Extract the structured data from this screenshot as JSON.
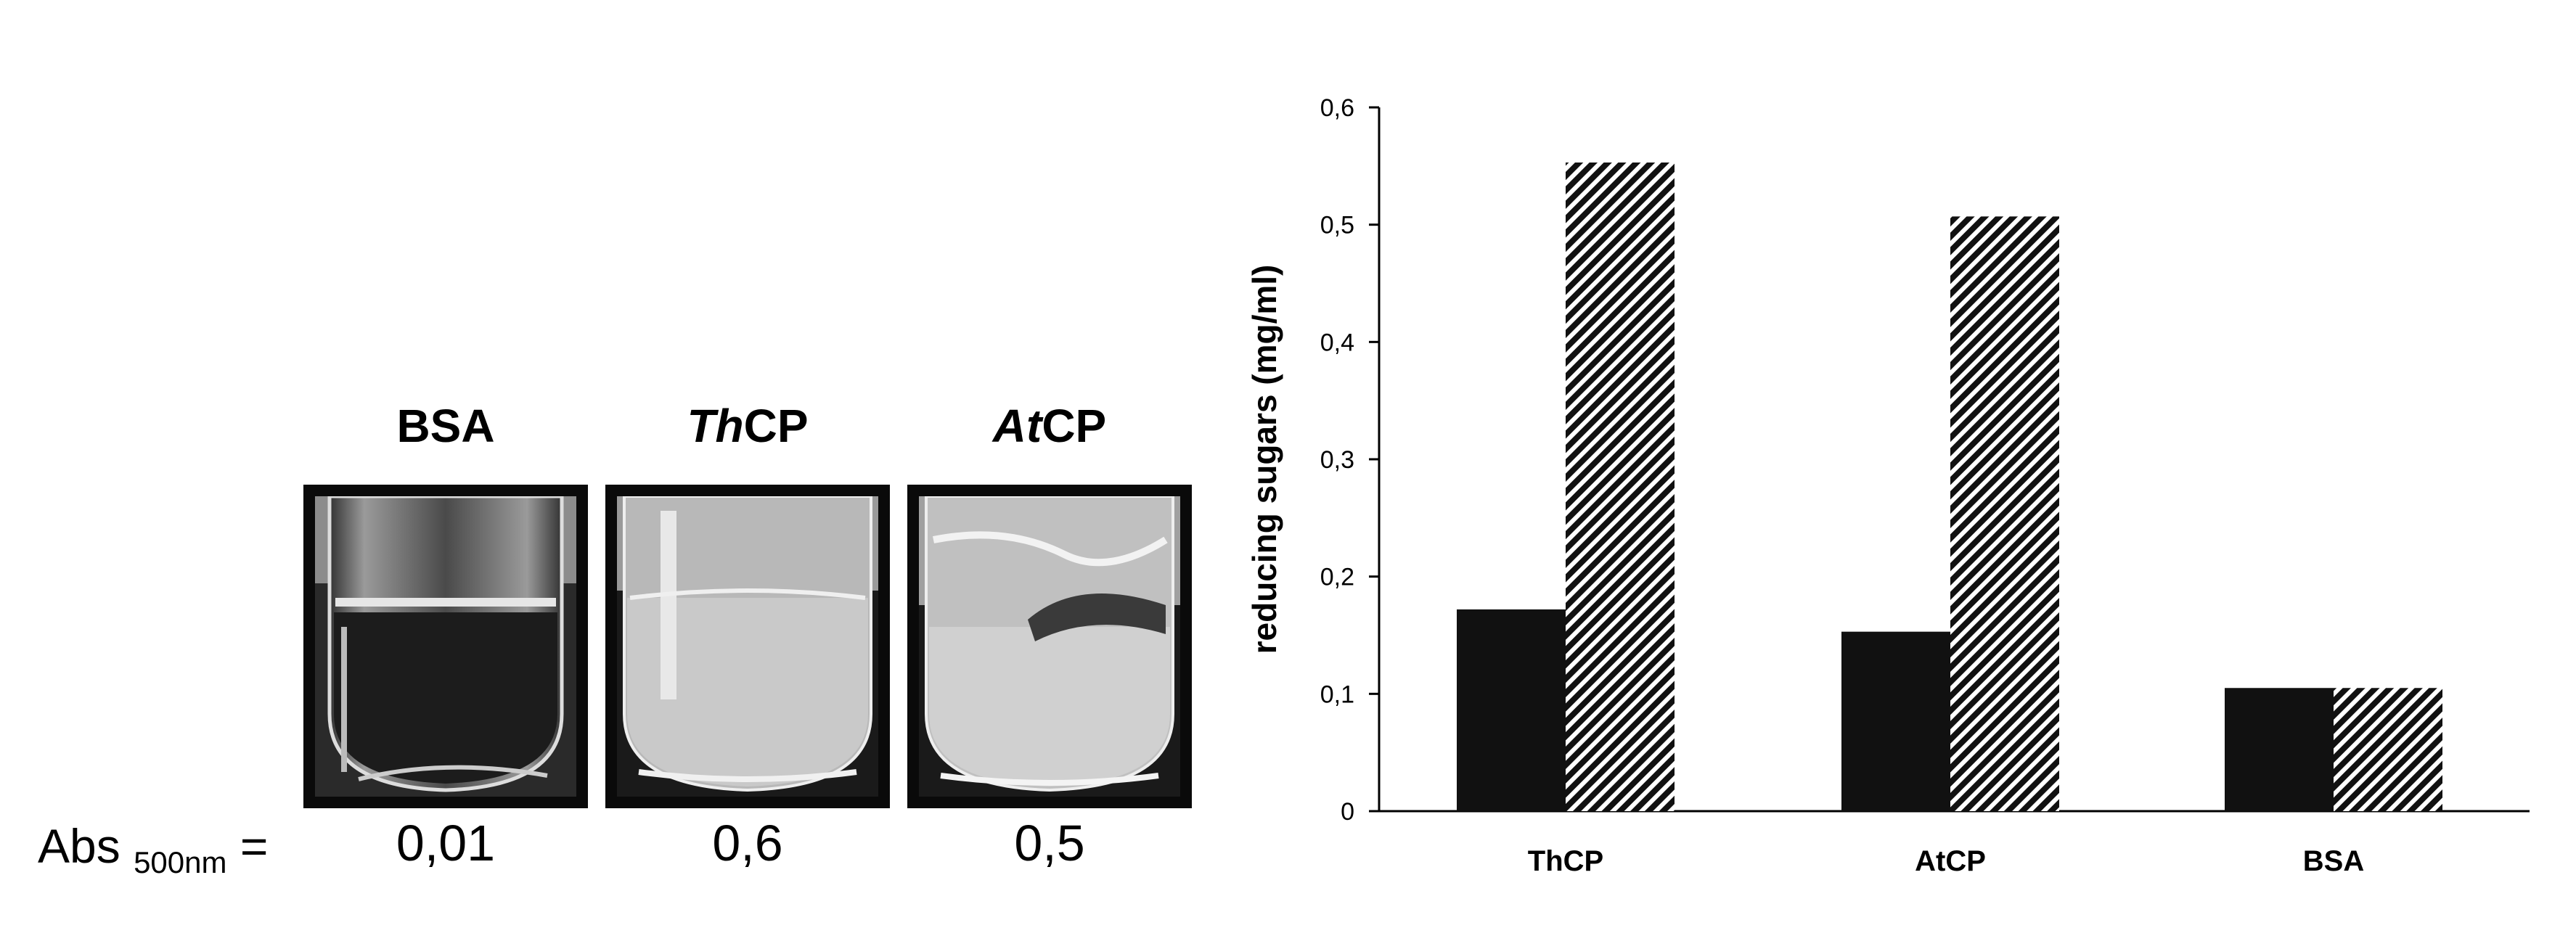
{
  "tubes": [
    {
      "label": "BSA",
      "label_italic": "",
      "label_plain": "BSA",
      "abs": "0,01"
    },
    {
      "label": "ThCP",
      "label_italic": "Th",
      "label_plain": "CP",
      "abs": "0,6"
    },
    {
      "label": "AtCP",
      "label_italic": "At",
      "label_plain": "CP",
      "abs": "0,5"
    }
  ],
  "abs_label": {
    "main": "Abs",
    "sub": "500nm",
    "eq": "="
  },
  "chart_data": {
    "type": "bar",
    "title": "",
    "xlabel": "",
    "ylabel": "reducing sugars (mg/ml)",
    "ylim": [
      0,
      0.6
    ],
    "yticks": [
      "0",
      "0,1",
      "0,2",
      "0,3",
      "0,4",
      "0,5",
      "0,6"
    ],
    "categories": [
      "ThCP",
      "AtCP",
      "BSA"
    ],
    "series": [
      {
        "name": "solid",
        "fill": "#111111",
        "pattern": "solid",
        "values": [
          0.172,
          0.153,
          0.105
        ]
      },
      {
        "name": "hatched",
        "fill": "#111111",
        "pattern": "diagonal-hatch",
        "values": [
          0.553,
          0.507,
          0.105
        ]
      }
    ],
    "grid": false,
    "legend": "none"
  }
}
